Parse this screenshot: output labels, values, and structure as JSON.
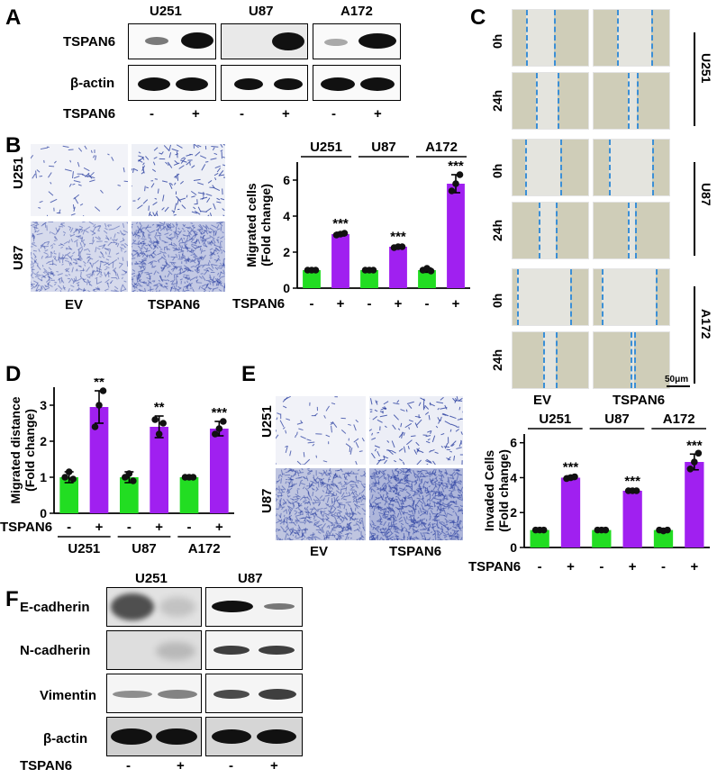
{
  "panels": {
    "A": "A",
    "B": "B",
    "C": "C",
    "D": "D",
    "E": "E",
    "F": "F"
  },
  "panel_a": {
    "cell_lines": [
      "U251",
      "U87",
      "A172"
    ],
    "rows": [
      "TSPAN6",
      "β-actin"
    ],
    "row_label": "TSPAN6",
    "signs": [
      "-",
      "+",
      "-",
      "+",
      "-",
      "+"
    ]
  },
  "panel_b": {
    "rows": [
      "U251",
      "U87"
    ],
    "columns": [
      "EV",
      "TSPAN6"
    ]
  },
  "panel_c": {
    "times": [
      "0h",
      "24h",
      "0h",
      "24h",
      "0h",
      "24h"
    ],
    "groups": [
      "U251",
      "U87",
      "A172"
    ],
    "columns": [
      "EV",
      "TSPAN6"
    ],
    "scale_bar": "50μm"
  },
  "panel_e": {
    "rows": [
      "U251",
      "U87"
    ],
    "columns": [
      "EV",
      "TSPAN6"
    ]
  },
  "panel_f": {
    "cell_lines": [
      "U251",
      "U87"
    ],
    "rows": [
      "E-cadherin",
      "N-cadherin",
      "Vimentin",
      "β-actin"
    ],
    "row_label": "TSPAN6",
    "signs": [
      "-",
      "+",
      "-",
      "+"
    ]
  },
  "colors": {
    "control": "#22dd22",
    "tspan6": "#a020f0",
    "dash": "#3b8fd6",
    "stain": "#2a3fa0"
  },
  "chart_data": [
    {
      "type": "bar",
      "id": "B",
      "ylabel": "Migrated cells (Fold change)",
      "group_labels": [
        "U251",
        "U87",
        "A172"
      ],
      "categories": [
        "-",
        "+",
        "-",
        "+",
        "-",
        "+"
      ],
      "row_label": "TSPAN6",
      "values": [
        1.0,
        3.0,
        1.0,
        2.3,
        1.0,
        5.8
      ],
      "errors": [
        0.05,
        0.1,
        0.05,
        0.08,
        0.12,
        0.5
      ],
      "points": [
        [
          1.0,
          1.0,
          1.0
        ],
        [
          2.95,
          3.0,
          3.05
        ],
        [
          1.0,
          1.0,
          1.0
        ],
        [
          2.25,
          2.3,
          2.3
        ],
        [
          1.0,
          1.1,
          0.95
        ],
        [
          5.4,
          5.8,
          6.3
        ]
      ],
      "significance": [
        "",
        "***",
        "",
        "***",
        "",
        "***"
      ],
      "ylim": [
        0,
        7
      ],
      "yticks": [
        0,
        2,
        4,
        6
      ]
    },
    {
      "type": "bar",
      "id": "D",
      "ylabel": "Migrated distance (Fold change)",
      "group_labels": [
        "U251",
        "U87",
        "A172"
      ],
      "categories": [
        "-",
        "+",
        "-",
        "+",
        "-",
        "+"
      ],
      "row_label": "TSPAN6",
      "values": [
        1.0,
        2.95,
        1.0,
        2.4,
        1.0,
        2.35
      ],
      "errors": [
        0.15,
        0.45,
        0.15,
        0.3,
        0.05,
        0.2
      ],
      "points": [
        [
          1.0,
          1.15,
          0.95
        ],
        [
          2.4,
          3.0,
          3.4
        ],
        [
          1.0,
          1.1,
          0.9
        ],
        [
          2.6,
          2.2,
          2.5
        ],
        [
          1.0,
          1.0,
          1.0
        ],
        [
          2.2,
          2.35,
          2.55
        ]
      ],
      "significance": [
        "",
        "**",
        "",
        "**",
        "",
        "***"
      ],
      "ylim": [
        0,
        3.5
      ],
      "yticks": [
        0,
        1,
        2,
        3
      ]
    },
    {
      "type": "bar",
      "id": "E",
      "ylabel": "Invaded Cells (Fold change)",
      "group_labels": [
        "U251",
        "U87",
        "A172"
      ],
      "categories": [
        "-",
        "+",
        "-",
        "+",
        "-",
        "+"
      ],
      "row_label": "TSPAN6",
      "values": [
        1.0,
        4.0,
        1.0,
        3.25,
        1.0,
        4.9
      ],
      "errors": [
        0.05,
        0.1,
        0.05,
        0.05,
        0.08,
        0.45
      ],
      "points": [
        [
          1.0,
          1.0,
          1.0
        ],
        [
          3.95,
          4.0,
          4.05
        ],
        [
          1.0,
          1.0,
          1.0
        ],
        [
          3.25,
          3.25,
          3.25
        ],
        [
          1.0,
          0.95,
          1.0
        ],
        [
          4.5,
          4.9,
          5.4
        ]
      ],
      "significance": [
        "",
        "***",
        "",
        "***",
        "",
        "***"
      ],
      "ylim": [
        0,
        6.5
      ],
      "yticks": [
        0,
        2,
        4,
        6
      ]
    }
  ]
}
